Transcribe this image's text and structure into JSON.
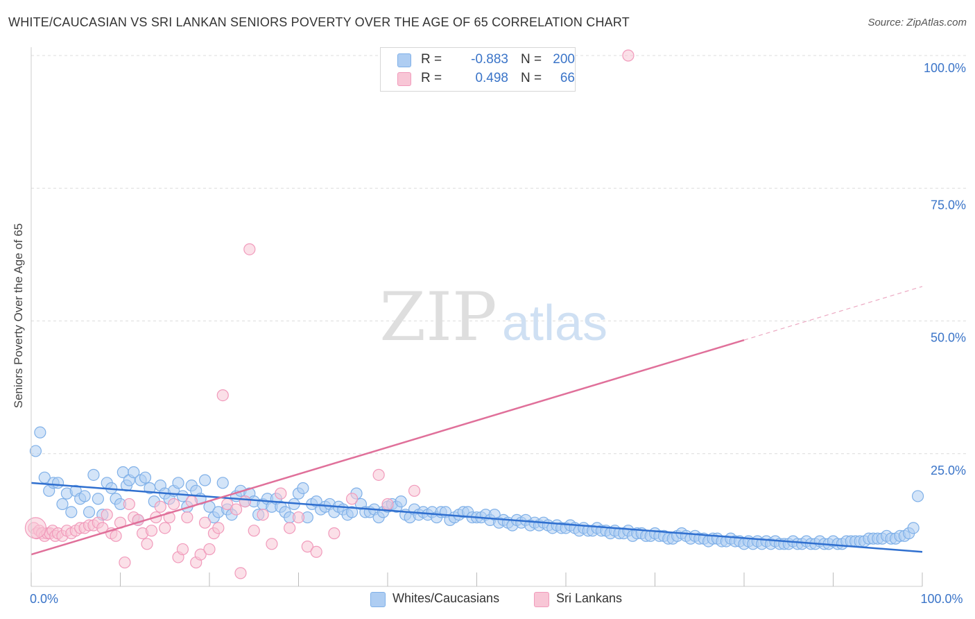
{
  "chart_data": {
    "type": "scatter",
    "title": "WHITE/CAUCASIAN VS SRI LANKAN SENIORS POVERTY OVER THE AGE OF 65 CORRELATION CHART",
    "source": "Source: ZipAtlas.com",
    "watermark": {
      "zip": "ZIP",
      "atlas": "atlas"
    },
    "xlabel": "",
    "ylabel": "Seniors Poverty Over the Age of 65",
    "xlim": [
      0,
      100
    ],
    "ylim": [
      0,
      100
    ],
    "x_tick_labels": [
      {
        "value": 0,
        "label": "0.0%"
      },
      {
        "value": 100,
        "label": "100.0%"
      }
    ],
    "y_tick_labels": [
      {
        "value": 25,
        "label": "25.0%"
      },
      {
        "value": 50,
        "label": "50.0%"
      },
      {
        "value": 75,
        "label": "75.0%"
      },
      {
        "value": 100,
        "label": "100.0%"
      }
    ],
    "legend": [
      {
        "series": "Whites/Caucasians",
        "r_label": "R =",
        "r_value": "-0.883",
        "n_label": "N =",
        "n_value": "200"
      },
      {
        "series": "Sri Lankans",
        "r_label": "R =",
        "r_value": "0.498",
        "n_label": "N =",
        "n_value": "66"
      }
    ],
    "series": [
      {
        "name": "Whites/Caucasians",
        "color": "#7fb0e8",
        "fill": "#aecdf2",
        "line_color": "#2f6fcf",
        "trend": {
          "x0": 0,
          "y0": 19.5,
          "x1": 100,
          "y1": 6.5
        },
        "points": [
          [
            0.5,
            25.5
          ],
          [
            1,
            29
          ],
          [
            1.5,
            20.5
          ],
          [
            2,
            18
          ],
          [
            2.5,
            19.5
          ],
          [
            3,
            19.5
          ],
          [
            3.5,
            15.5
          ],
          [
            4,
            17.5
          ],
          [
            4.5,
            14
          ],
          [
            5,
            18
          ],
          [
            5.5,
            16.5
          ],
          [
            6,
            17
          ],
          [
            6.5,
            14
          ],
          [
            7,
            21
          ],
          [
            7.5,
            16.5
          ],
          [
            8,
            13.5
          ],
          [
            8.5,
            19.5
          ],
          [
            9,
            18.5
          ],
          [
            9.5,
            16.5
          ],
          [
            10,
            15.5
          ],
          [
            10.3,
            21.5
          ],
          [
            10.7,
            19
          ],
          [
            11,
            20
          ],
          [
            11.5,
            21.5
          ],
          [
            12,
            12.5
          ],
          [
            12.3,
            20
          ],
          [
            12.8,
            20.5
          ],
          [
            13.3,
            18.5
          ],
          [
            13.8,
            16
          ],
          [
            14.5,
            19
          ],
          [
            15,
            17.5
          ],
          [
            15.5,
            16.5
          ],
          [
            16,
            18
          ],
          [
            16.5,
            19.5
          ],
          [
            17,
            17
          ],
          [
            17.5,
            15
          ],
          [
            18,
            19
          ],
          [
            18.5,
            18
          ],
          [
            19,
            16.5
          ],
          [
            19.5,
            20
          ],
          [
            20,
            15
          ],
          [
            20.5,
            13
          ],
          [
            21,
            14
          ],
          [
            21.5,
            19.5
          ],
          [
            22,
            14.5
          ],
          [
            22.5,
            13.5
          ],
          [
            23,
            17
          ],
          [
            23.5,
            18
          ],
          [
            24,
            16
          ],
          [
            24.5,
            17.5
          ],
          [
            25,
            16
          ],
          [
            25.5,
            13.5
          ],
          [
            26,
            15.5
          ],
          [
            26.5,
            16.5
          ],
          [
            27,
            15
          ],
          [
            27.5,
            16.5
          ],
          [
            28,
            15
          ],
          [
            28.5,
            14
          ],
          [
            29,
            13
          ],
          [
            29.5,
            15.5
          ],
          [
            30,
            17.5
          ],
          [
            30.5,
            18.5
          ],
          [
            31,
            13
          ],
          [
            31.5,
            15.5
          ],
          [
            32,
            16
          ],
          [
            32.5,
            14.5
          ],
          [
            33,
            15
          ],
          [
            33.5,
            15.5
          ],
          [
            34,
            14
          ],
          [
            34.5,
            15
          ],
          [
            35,
            14.5
          ],
          [
            35.5,
            13.5
          ],
          [
            36,
            14
          ],
          [
            36.5,
            17.5
          ],
          [
            37,
            15.5
          ],
          [
            37.5,
            14
          ],
          [
            38,
            14
          ],
          [
            38.5,
            14.5
          ],
          [
            39,
            13
          ],
          [
            39.5,
            14
          ],
          [
            40,
            15
          ],
          [
            40.5,
            15.5
          ],
          [
            41,
            15
          ],
          [
            41.5,
            16
          ],
          [
            42,
            13.5
          ],
          [
            42.5,
            13
          ],
          [
            43,
            14.5
          ],
          [
            43.5,
            13.5
          ],
          [
            44,
            14
          ],
          [
            44.5,
            13.5
          ],
          [
            45,
            14
          ],
          [
            45.5,
            13
          ],
          [
            46,
            14
          ],
          [
            46.5,
            14
          ],
          [
            47,
            12.5
          ],
          [
            47.5,
            13
          ],
          [
            48,
            13.5
          ],
          [
            48.5,
            14
          ],
          [
            49,
            14
          ],
          [
            49.5,
            13
          ],
          [
            50,
            13
          ],
          [
            50.5,
            13
          ],
          [
            51,
            13.5
          ],
          [
            51.5,
            12.5
          ],
          [
            52,
            13.5
          ],
          [
            52.5,
            12
          ],
          [
            53,
            12.5
          ],
          [
            53.5,
            12
          ],
          [
            54,
            11.5
          ],
          [
            54.5,
            12.5
          ],
          [
            55,
            12
          ],
          [
            55.5,
            12.5
          ],
          [
            56,
            11.5
          ],
          [
            56.5,
            12
          ],
          [
            57,
            11.5
          ],
          [
            57.5,
            12
          ],
          [
            58,
            11.5
          ],
          [
            58.5,
            11
          ],
          [
            59,
            11.5
          ],
          [
            59.5,
            11
          ],
          [
            60,
            11
          ],
          [
            60.5,
            11.5
          ],
          [
            61,
            11
          ],
          [
            61.5,
            10.5
          ],
          [
            62,
            11
          ],
          [
            62.5,
            10.5
          ],
          [
            63,
            10.5
          ],
          [
            63.5,
            11
          ],
          [
            64,
            10.5
          ],
          [
            64.5,
            10.5
          ],
          [
            65,
            10
          ],
          [
            65.5,
            10.5
          ],
          [
            66,
            10
          ],
          [
            66.5,
            10
          ],
          [
            67,
            10.5
          ],
          [
            67.5,
            9.5
          ],
          [
            68,
            10
          ],
          [
            68.5,
            10
          ],
          [
            69,
            9.5
          ],
          [
            69.5,
            9.5
          ],
          [
            70,
            10
          ],
          [
            70.5,
            9.5
          ],
          [
            71,
            9.5
          ],
          [
            71.5,
            9
          ],
          [
            72,
            9
          ],
          [
            72.5,
            9.5
          ],
          [
            73,
            10
          ],
          [
            73.5,
            9.5
          ],
          [
            74,
            9
          ],
          [
            74.5,
            9.5
          ],
          [
            75,
            9
          ],
          [
            75.5,
            9
          ],
          [
            76,
            8.5
          ],
          [
            76.5,
            9
          ],
          [
            77,
            9
          ],
          [
            77.5,
            8.5
          ],
          [
            78,
            8.5
          ],
          [
            78.5,
            9
          ],
          [
            79,
            8.5
          ],
          [
            79.5,
            8.5
          ],
          [
            80,
            8
          ],
          [
            80.5,
            8.5
          ],
          [
            81,
            8
          ],
          [
            81.5,
            8.5
          ],
          [
            82,
            8
          ],
          [
            82.5,
            8.5
          ],
          [
            83,
            8
          ],
          [
            83.5,
            8.5
          ],
          [
            84,
            8
          ],
          [
            84.5,
            8
          ],
          [
            85,
            8
          ],
          [
            85.5,
            8.5
          ],
          [
            86,
            8
          ],
          [
            86.5,
            8
          ],
          [
            87,
            8.5
          ],
          [
            87.5,
            8
          ],
          [
            88,
            8
          ],
          [
            88.5,
            8.5
          ],
          [
            89,
            8
          ],
          [
            89.5,
            8
          ],
          [
            90,
            8.5
          ],
          [
            90.5,
            8
          ],
          [
            91,
            8
          ],
          [
            91.5,
            8.5
          ],
          [
            92,
            8.5
          ],
          [
            92.5,
            8.5
          ],
          [
            93,
            8.5
          ],
          [
            93.5,
            8.5
          ],
          [
            94,
            9
          ],
          [
            94.5,
            9
          ],
          [
            95,
            9
          ],
          [
            95.5,
            9
          ],
          [
            96,
            9.5
          ],
          [
            96.5,
            9
          ],
          [
            97,
            9
          ],
          [
            97.5,
            9.5
          ],
          [
            98,
            9.5
          ],
          [
            98.5,
            10
          ],
          [
            99,
            11
          ],
          [
            99.5,
            17
          ]
        ]
      },
      {
        "name": "Sri Lankans",
        "color": "#f19abb",
        "fill": "#f8c6d6",
        "line_color": "#e0709a",
        "trend": {
          "x0": 0,
          "y0": 6,
          "x1": 100,
          "y1": 56.5,
          "solid_until": 80
        },
        "points": [
          [
            0.3,
            11
          ],
          [
            0.6,
            10
          ],
          [
            0.9,
            10.5
          ],
          [
            1.2,
            10
          ],
          [
            1.5,
            9.5
          ],
          [
            1.8,
            10
          ],
          [
            2.1,
            10
          ],
          [
            2.4,
            10.5
          ],
          [
            2.7,
            9.5
          ],
          [
            3,
            10
          ],
          [
            3.5,
            9.5
          ],
          [
            4,
            10.5
          ],
          [
            4.5,
            10
          ],
          [
            5,
            10.5
          ],
          [
            5.5,
            11
          ],
          [
            6,
            11
          ],
          [
            6.5,
            11.5
          ],
          [
            7,
            11.5
          ],
          [
            7.5,
            12
          ],
          [
            8,
            11
          ],
          [
            8.5,
            13.5
          ],
          [
            9,
            10
          ],
          [
            9.5,
            9.5
          ],
          [
            10,
            12
          ],
          [
            10.5,
            4.5
          ],
          [
            11,
            15.5
          ],
          [
            11.5,
            13
          ],
          [
            12,
            12.5
          ],
          [
            12.5,
            10
          ],
          [
            13,
            8
          ],
          [
            13.5,
            10.5
          ],
          [
            14,
            13
          ],
          [
            14.5,
            15
          ],
          [
            15,
            11
          ],
          [
            15.5,
            13
          ],
          [
            16,
            15.5
          ],
          [
            16.5,
            5.5
          ],
          [
            17,
            7
          ],
          [
            17.5,
            13
          ],
          [
            18,
            16
          ],
          [
            18.5,
            4.5
          ],
          [
            19,
            6
          ],
          [
            19.5,
            12
          ],
          [
            20,
            7
          ],
          [
            20.5,
            10
          ],
          [
            21,
            11
          ],
          [
            21.5,
            36
          ],
          [
            22,
            15.5
          ],
          [
            23,
            14.5
          ],
          [
            23.5,
            2.5
          ],
          [
            24,
            16
          ],
          [
            24.5,
            63.5
          ],
          [
            25,
            10.5
          ],
          [
            26,
            13.5
          ],
          [
            27,
            8
          ],
          [
            28,
            17.5
          ],
          [
            29,
            11
          ],
          [
            30,
            13
          ],
          [
            31,
            7.5
          ],
          [
            32,
            6.5
          ],
          [
            34,
            10
          ],
          [
            36,
            16.5
          ],
          [
            39,
            21
          ],
          [
            40,
            15.5
          ],
          [
            43,
            18
          ],
          [
            67,
            100
          ]
        ],
        "large_point": [
          0.5,
          11
        ]
      }
    ]
  }
}
